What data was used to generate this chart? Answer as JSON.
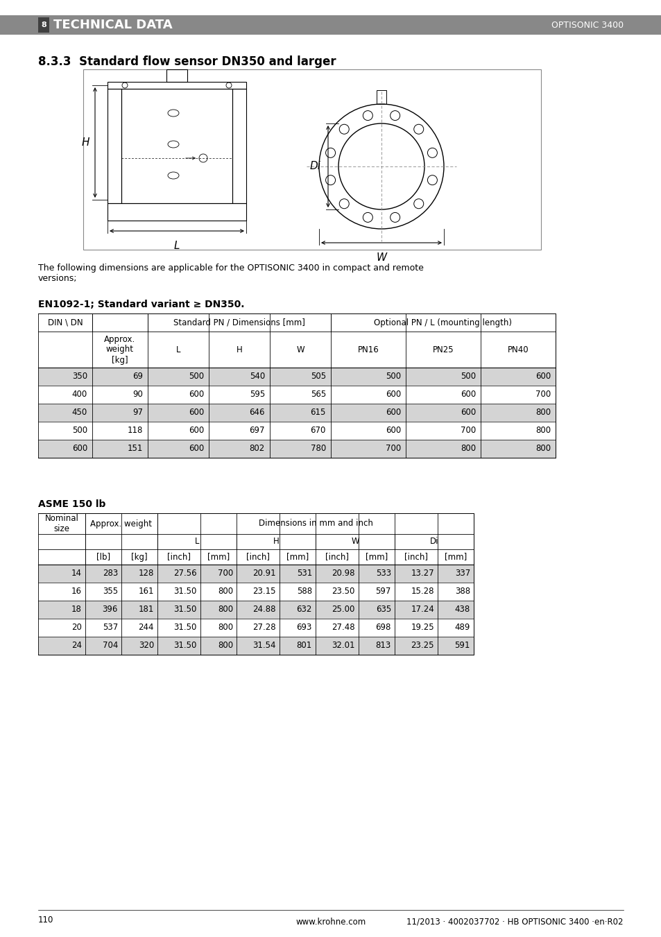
{
  "page_bg": "#ffffff",
  "header_bar_color": "#888888",
  "header_text_left": "TECHNICAL DATA",
  "header_num": "8",
  "header_text_right": "OPTISONIC 3400",
  "section_title": "8.3.3  Standard flow sensor DN350 and larger",
  "body_text": "The following dimensions are applicable for the OPTISONIC 3400 in compact and remote\nversions;",
  "table1_title": "EN1092-1; Standard variant ≥ DN350.",
  "table1_data": [
    [
      "350",
      "69",
      "500",
      "540",
      "505",
      "500",
      "500",
      "600"
    ],
    [
      "400",
      "90",
      "600",
      "595",
      "565",
      "600",
      "600",
      "700"
    ],
    [
      "450",
      "97",
      "600",
      "646",
      "615",
      "600",
      "600",
      "800"
    ],
    [
      "500",
      "118",
      "600",
      "697",
      "670",
      "600",
      "700",
      "800"
    ],
    [
      "600",
      "151",
      "600",
      "802",
      "780",
      "700",
      "800",
      "800"
    ]
  ],
  "table1_row_shading": [
    true,
    false,
    true,
    false,
    true
  ],
  "table2_title": "ASME 150 lb",
  "table2_data": [
    [
      "14",
      "283",
      "128",
      "27.56",
      "700",
      "20.91",
      "531",
      "20.98",
      "533",
      "13.27",
      "337"
    ],
    [
      "16",
      "355",
      "161",
      "31.50",
      "800",
      "23.15",
      "588",
      "23.50",
      "597",
      "15.28",
      "388"
    ],
    [
      "18",
      "396",
      "181",
      "31.50",
      "800",
      "24.88",
      "632",
      "25.00",
      "635",
      "17.24",
      "438"
    ],
    [
      "20",
      "537",
      "244",
      "31.50",
      "800",
      "27.28",
      "693",
      "27.48",
      "698",
      "19.25",
      "489"
    ],
    [
      "24",
      "704",
      "320",
      "31.50",
      "800",
      "31.54",
      "801",
      "32.01",
      "813",
      "23.25",
      "591"
    ]
  ],
  "table2_row_shading": [
    true,
    false,
    true,
    false,
    true
  ],
  "footer_page": "110",
  "footer_center": "www.krohne.com",
  "footer_right": "11/2013 · 4002037702 · HB OPTISONIC 3400 ·en·R02",
  "shading_color": "#d4d4d4",
  "border_color": "#000000"
}
